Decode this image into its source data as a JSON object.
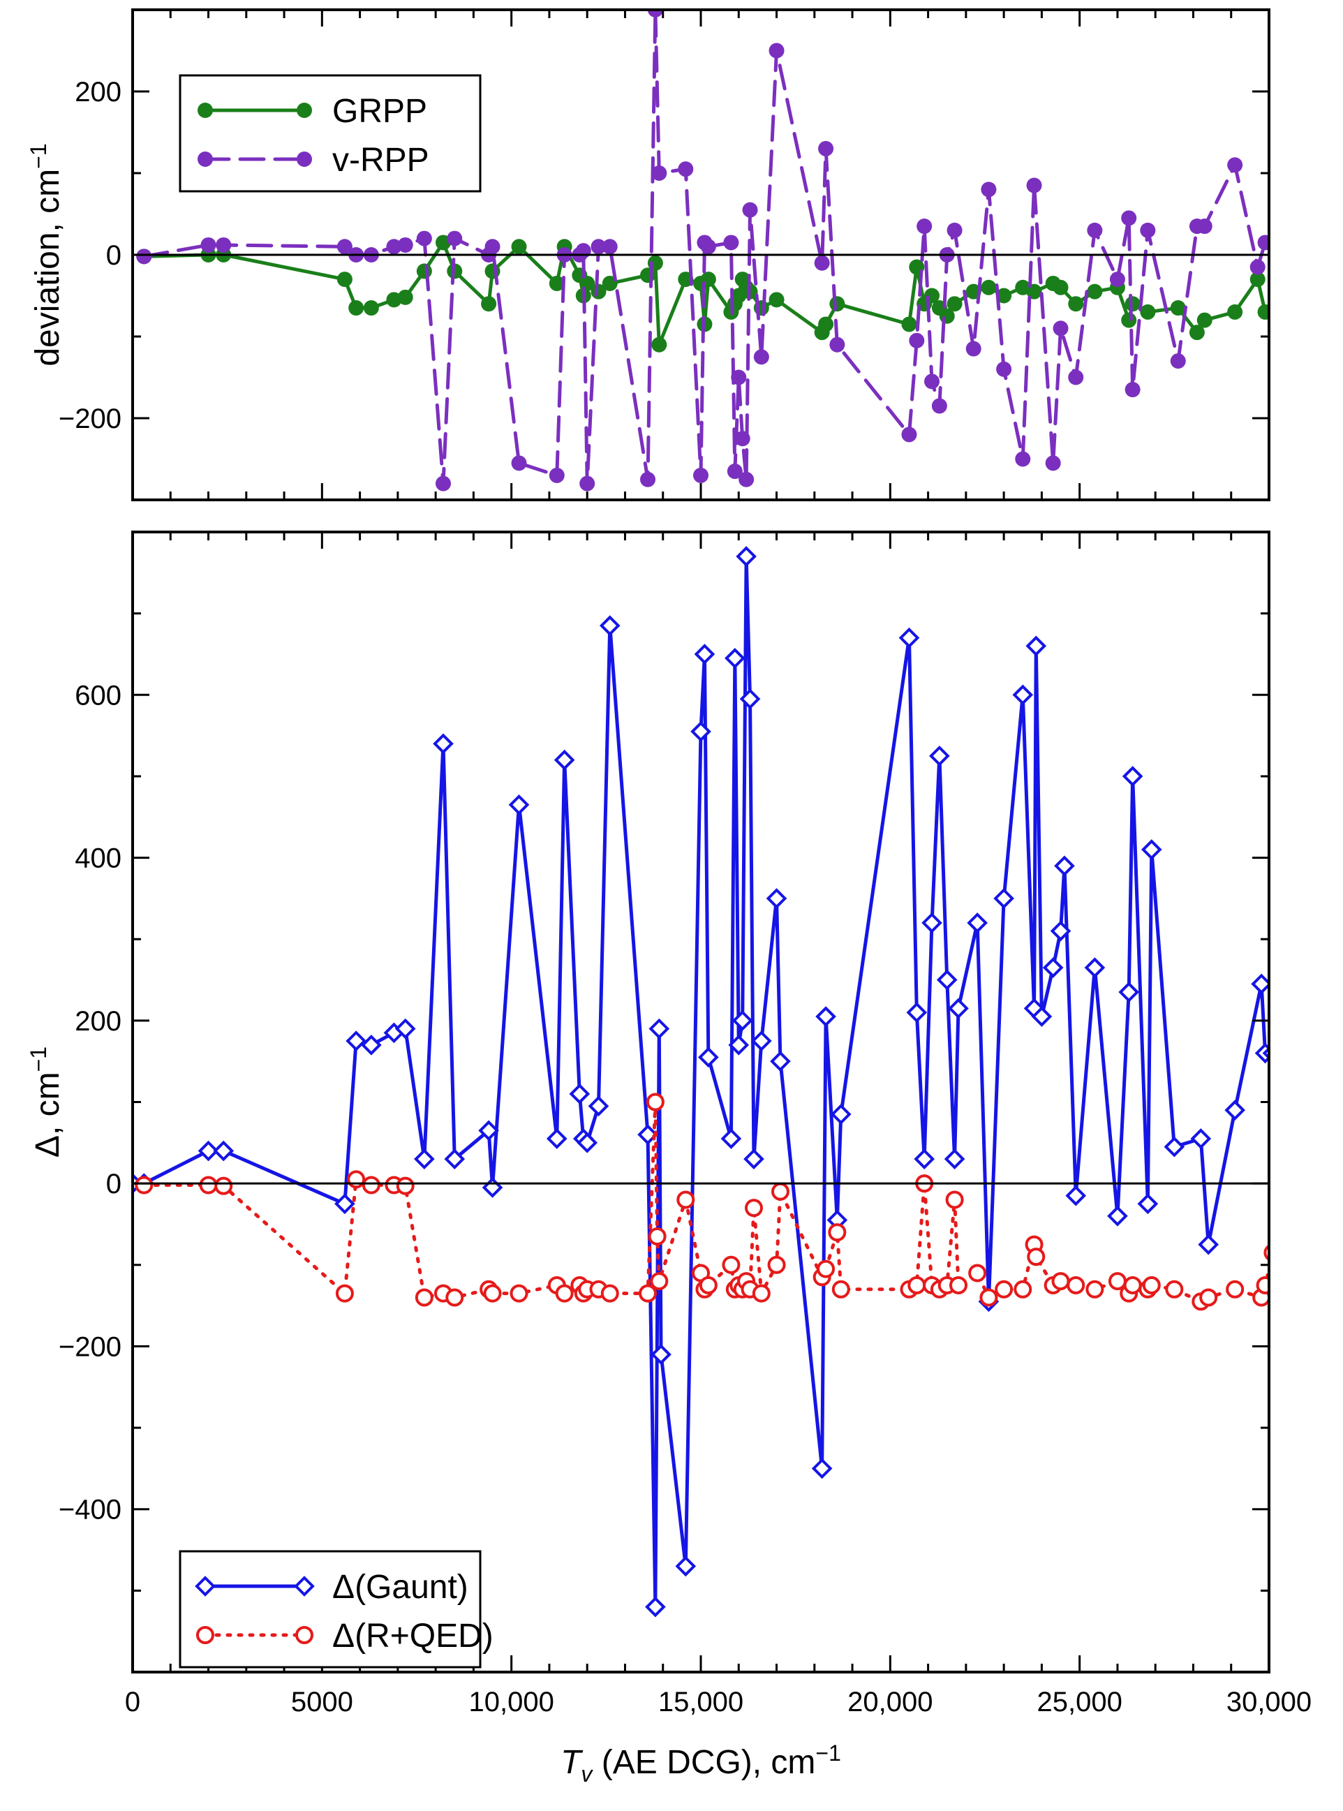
{
  "chart_data": [
    {
      "type": "line",
      "panel": "top",
      "title": "",
      "xlabel": "",
      "ylabel": "deviation, cm",
      "ylabel_superscript": "−1",
      "xlim": [
        0,
        30000
      ],
      "ylim": [
        -300,
        300
      ],
      "yticks": [
        -200,
        0,
        200
      ],
      "ytick_labels": [
        "−200",
        "0",
        "200"
      ],
      "zero_line": true,
      "legend_position": "top-left",
      "series": [
        {
          "name": "GRPP",
          "color": "#1a7f1a",
          "style": "solid",
          "marker": "filled-circle",
          "x": [
            300,
            2000,
            2400,
            5600,
            5900,
            6300,
            6900,
            7200,
            7700,
            8200,
            8500,
            9400,
            9500,
            10200,
            11200,
            11400,
            11800,
            11900,
            12000,
            12300,
            12600,
            13600,
            13800,
            13900,
            14600,
            15000,
            15100,
            15200,
            15800,
            15900,
            16000,
            16100,
            16200,
            16300,
            16600,
            17000,
            18200,
            18300,
            18600,
            20500,
            20700,
            20900,
            21100,
            21300,
            21500,
            21700,
            22200,
            22600,
            23000,
            23500,
            23800,
            24300,
            24500,
            24900,
            25400,
            26000,
            26300,
            26400,
            26800,
            27600,
            28100,
            28300,
            29100,
            29700,
            29900
          ],
          "values": [
            -2,
            0,
            0,
            -30,
            -65,
            -65,
            -55,
            -52,
            -20,
            15,
            -20,
            -60,
            -20,
            10,
            -35,
            10,
            -25,
            -50,
            -35,
            -45,
            -35,
            -25,
            -10,
            -110,
            -30,
            -35,
            -85,
            -30,
            -70,
            -60,
            -50,
            -30,
            -40,
            -45,
            -65,
            -55,
            -95,
            -85,
            -60,
            -85,
            -15,
            -60,
            -50,
            -65,
            -75,
            -60,
            -45,
            -40,
            -50,
            -40,
            -45,
            -35,
            -40,
            -60,
            -45,
            -40,
            -80,
            -60,
            -70,
            -65,
            -95,
            -80,
            -70,
            -30,
            -70
          ],
          "values_note": "approximate readings"
        },
        {
          "name": "v-RPP",
          "color": "#7b2fbf",
          "style": "dashed",
          "marker": "filled-circle",
          "x": [
            300,
            2000,
            2400,
            5600,
            5900,
            6300,
            6900,
            7200,
            7700,
            8200,
            8500,
            9400,
            9500,
            10200,
            11200,
            11400,
            11800,
            11900,
            12000,
            12300,
            12600,
            13600,
            13800,
            13900,
            14600,
            15000,
            15100,
            15200,
            15800,
            15900,
            16000,
            16100,
            16200,
            16300,
            16600,
            17000,
            18200,
            18300,
            18600,
            20500,
            20700,
            20900,
            21100,
            21300,
            21500,
            21700,
            22200,
            22600,
            23000,
            23500,
            23800,
            24300,
            24500,
            24900,
            25400,
            26000,
            26300,
            26400,
            26800,
            27600,
            28100,
            28300,
            29100,
            29700,
            29900
          ],
          "values": [
            -2,
            12,
            12,
            10,
            0,
            0,
            10,
            12,
            20,
            -280,
            20,
            0,
            10,
            -255,
            -270,
            0,
            0,
            5,
            -280,
            10,
            10,
            -275,
            300,
            100,
            105,
            -270,
            15,
            10,
            15,
            -265,
            -150,
            -225,
            -275,
            55,
            -125,
            250,
            -10,
            130,
            -110,
            -220,
            -105,
            35,
            -155,
            -185,
            0,
            30,
            -115,
            80,
            -140,
            -250,
            85,
            -255,
            -90,
            -150,
            30,
            -30,
            45,
            -165,
            30,
            -130,
            35,
            35,
            110,
            -15,
            15
          ],
          "values_note": "approximate readings"
        }
      ]
    },
    {
      "type": "line",
      "panel": "bottom",
      "title": "",
      "xlabel": "T",
      "xlabel_subscript": "v",
      "xlabel_rest": " (AE DCG), cm",
      "xlabel_superscript": "−1",
      "ylabel": "Δ, cm",
      "ylabel_superscript": "−1",
      "xlim": [
        0,
        30000
      ],
      "ylim": [
        -600,
        800
      ],
      "xticks": [
        0,
        5000,
        10000,
        15000,
        20000,
        25000,
        30000
      ],
      "xtick_labels": [
        "0",
        "5000",
        "10,000",
        "15,000",
        "20,000",
        "25,000",
        "30,000"
      ],
      "yticks": [
        -400,
        -200,
        0,
        200,
        400,
        600
      ],
      "ytick_labels": [
        "−400",
        "−200",
        "0",
        "200",
        "400",
        "600"
      ],
      "zero_line": true,
      "legend_position": "bottom-left",
      "series": [
        {
          "name": "Δ(Gaunt)",
          "color": "#1515e6",
          "style": "solid",
          "marker": "open-diamond",
          "x": [
            0,
            300,
            2000,
            2400,
            5600,
            5900,
            6300,
            6900,
            7200,
            7700,
            8200,
            8500,
            9400,
            9500,
            10200,
            11200,
            11400,
            11800,
            11900,
            12000,
            12300,
            12600,
            13600,
            13800,
            13900,
            13950,
            14600,
            15000,
            15100,
            15200,
            15800,
            15900,
            16000,
            16100,
            16200,
            16300,
            16400,
            16600,
            17000,
            17100,
            18200,
            18300,
            18600,
            18700,
            20500,
            20700,
            20900,
            21100,
            21300,
            21500,
            21700,
            21800,
            22300,
            22600,
            23000,
            23500,
            23800,
            23850,
            24000,
            24300,
            24500,
            24600,
            24900,
            25400,
            26000,
            26300,
            26400,
            26800,
            26900,
            27500,
            28200,
            28400,
            29100,
            29800,
            29900,
            30100
          ],
          "values": [
            0,
            0,
            40,
            40,
            -25,
            175,
            170,
            185,
            190,
            30,
            540,
            30,
            65,
            -5,
            465,
            55,
            520,
            110,
            55,
            50,
            95,
            685,
            60,
            -520,
            190,
            -210,
            -470,
            555,
            650,
            155,
            55,
            645,
            170,
            200,
            770,
            595,
            30,
            175,
            350,
            150,
            -350,
            205,
            -45,
            85,
            670,
            210,
            30,
            320,
            525,
            250,
            30,
            215,
            320,
            -145,
            350,
            600,
            215,
            660,
            205,
            265,
            310,
            390,
            -15,
            265,
            -40,
            235,
            500,
            -25,
            410,
            45,
            55,
            -75,
            90,
            245,
            160,
            160
          ],
          "values_note": "approximate readings"
        },
        {
          "name": "Δ(R+QED)",
          "color": "#e61a1a",
          "style": "dotted",
          "marker": "open-circle",
          "x": [
            300,
            2000,
            2400,
            5600,
            5900,
            6300,
            6900,
            7200,
            7700,
            8200,
            8500,
            9400,
            9500,
            10200,
            11200,
            11400,
            11800,
            11900,
            12000,
            12300,
            12600,
            13600,
            13800,
            13850,
            13900,
            14600,
            15000,
            15100,
            15200,
            15800,
            15900,
            16000,
            16100,
            16200,
            16300,
            16400,
            16600,
            17000,
            17100,
            18200,
            18300,
            18600,
            18700,
            20500,
            20700,
            20900,
            21100,
            21300,
            21500,
            21700,
            21800,
            22300,
            22600,
            23000,
            23500,
            23800,
            23850,
            24300,
            24500,
            24900,
            25400,
            26000,
            26300,
            26400,
            26800,
            26900,
            27500,
            28200,
            28400,
            29100,
            29800,
            29900,
            30100
          ],
          "values": [
            -2,
            -2,
            -3,
            -135,
            5,
            -2,
            -2,
            -3,
            -140,
            -135,
            -140,
            -130,
            -135,
            -135,
            -125,
            -135,
            -125,
            -135,
            -130,
            -130,
            -135,
            -135,
            100,
            -65,
            -120,
            -20,
            -110,
            -130,
            -125,
            -100,
            -130,
            -125,
            -130,
            -120,
            -130,
            -30,
            -135,
            -100,
            -10,
            -115,
            -105,
            -60,
            -130,
            -130,
            -125,
            0,
            -125,
            -130,
            -125,
            -20,
            -125,
            -110,
            -140,
            -130,
            -130,
            -75,
            -90,
            -125,
            -120,
            -125,
            -130,
            -120,
            -135,
            -125,
            -130,
            -125,
            -130,
            -145,
            -140,
            -130,
            -140,
            -125,
            -85
          ],
          "values_note": "approximate readings"
        }
      ]
    }
  ]
}
